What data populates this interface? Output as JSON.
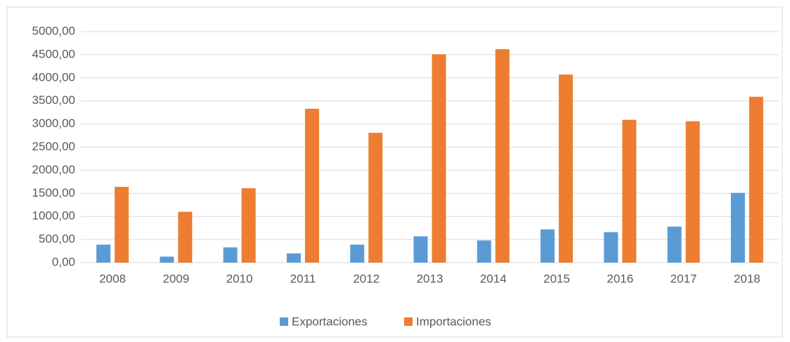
{
  "chart_data": {
    "type": "bar",
    "categories": [
      "2008",
      "2009",
      "2010",
      "2011",
      "2012",
      "2013",
      "2014",
      "2015",
      "2016",
      "2017",
      "2018"
    ],
    "series": [
      {
        "name": "Exportaciones",
        "color": "#5b9bd5",
        "values": [
          390,
          130,
          330,
          200,
          390,
          570,
          480,
          720,
          660,
          780,
          1510
        ]
      },
      {
        "name": "Importaciones",
        "color": "#ed7d31",
        "values": [
          1640,
          1100,
          1610,
          3330,
          2810,
          4510,
          4620,
          4070,
          3090,
          3060,
          3590
        ]
      }
    ],
    "ylim": [
      0,
      5000
    ],
    "yticks": [
      {
        "value": 0,
        "label": "0,00"
      },
      {
        "value": 500,
        "label": "500,00"
      },
      {
        "value": 1000,
        "label": "1000,00"
      },
      {
        "value": 1500,
        "label": "1500,00"
      },
      {
        "value": 2000,
        "label": "2000,00"
      },
      {
        "value": 2500,
        "label": "2500,00"
      },
      {
        "value": 3000,
        "label": "3000,00"
      },
      {
        "value": 3500,
        "label": "3500,00"
      },
      {
        "value": 4000,
        "label": "4000,00"
      },
      {
        "value": 4500,
        "label": "4500,00"
      },
      {
        "value": 5000,
        "label": "5000,00"
      }
    ],
    "grid": true,
    "legend": "bottom"
  }
}
